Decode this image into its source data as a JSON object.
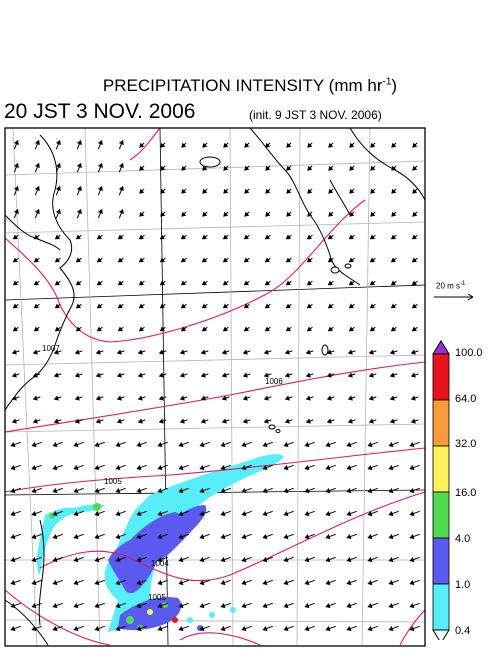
{
  "title": {
    "main": "PRECIPITATION INTENSITY (mm hr",
    "exp": "-1",
    "close": ")"
  },
  "valid_time": "20 JST 3 NOV. 2006",
  "init_time": "(init. 9 JST 3 NOV. 2006)",
  "wind_scale": {
    "label": "20 m s",
    "exp": "-1"
  },
  "isobar_labels": [
    "1007",
    "1006",
    "1005",
    "1004",
    "1005"
  ],
  "colorbar": {
    "levels": [
      "100.0",
      "64.0",
      "32.0",
      "16.0",
      "4.0",
      "1.0",
      "0.4"
    ],
    "colors": [
      "#9a2fe0",
      "#e8131b",
      "#f79b3d",
      "#fbf35b",
      "#52dc52",
      "#5a5af0",
      "#56eef8",
      "#ffffff"
    ]
  },
  "colors": {
    "isobar": "#d81c6c",
    "coast": "#000000",
    "grid": "#b4b4b4",
    "frame": "#000000"
  }
}
